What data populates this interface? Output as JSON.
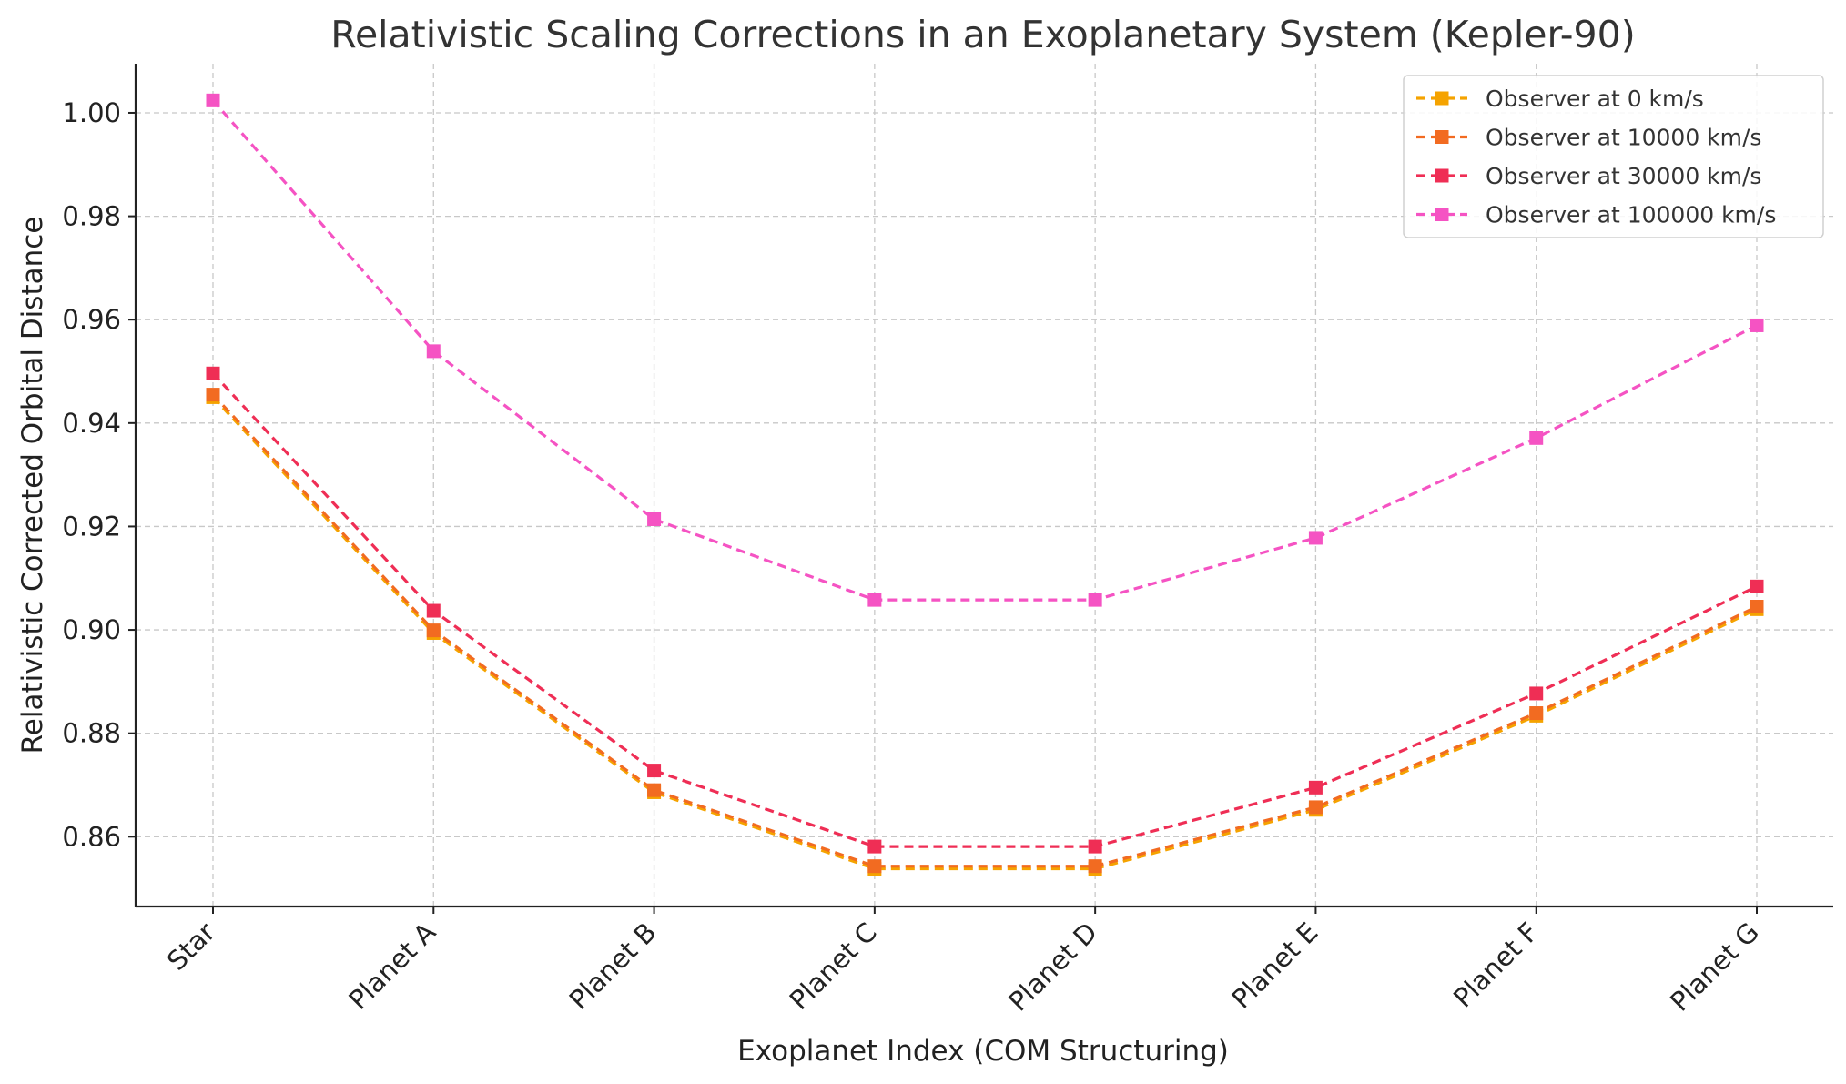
{
  "chart_data": {
    "type": "line",
    "title": "Relativistic Scaling Corrections in an Exoplanetary System (Kepler-90)",
    "xlabel": "Exoplanet Index (COM Structuring)",
    "ylabel": "Relativistic Corrected Orbital Distance",
    "categories": [
      "Star",
      "Planet A",
      "Planet B",
      "Planet C",
      "Planet D",
      "Planet E",
      "Planet F",
      "Planet G"
    ],
    "ylim": [
      0.8465,
      1.0095
    ],
    "yticks": [
      0.86,
      0.88,
      0.9,
      0.92,
      0.94,
      0.96,
      0.98,
      1.0
    ],
    "ytick_labels": [
      "0.86",
      "0.88",
      "0.90",
      "0.92",
      "0.94",
      "0.96",
      "0.98",
      "1.00"
    ],
    "grid": true,
    "legend_position": "top-right",
    "line_style": "dashed",
    "marker": "square",
    "series": [
      {
        "name": "Observer at 0 km/s",
        "color": "#f5a300",
        "values": [
          0.945,
          0.8994,
          0.8686,
          0.8538,
          0.8538,
          0.8652,
          0.8834,
          0.904
        ]
      },
      {
        "name": "Observer at 10000 km/s",
        "color": "#f26b21",
        "values": [
          0.9455,
          0.8999,
          0.869,
          0.8543,
          0.8543,
          0.8657,
          0.8839,
          0.9045
        ]
      },
      {
        "name": "Observer at 30000 km/s",
        "color": "#ef2e55",
        "values": [
          0.9496,
          0.9037,
          0.8728,
          0.8581,
          0.8581,
          0.8695,
          0.8877,
          0.9084
        ]
      },
      {
        "name": "Observer at 100000 km/s",
        "color": "#f553c3",
        "values": [
          1.0024,
          0.9539,
          0.9214,
          0.9058,
          0.9058,
          0.9178,
          0.9371,
          0.9589
        ]
      }
    ]
  }
}
